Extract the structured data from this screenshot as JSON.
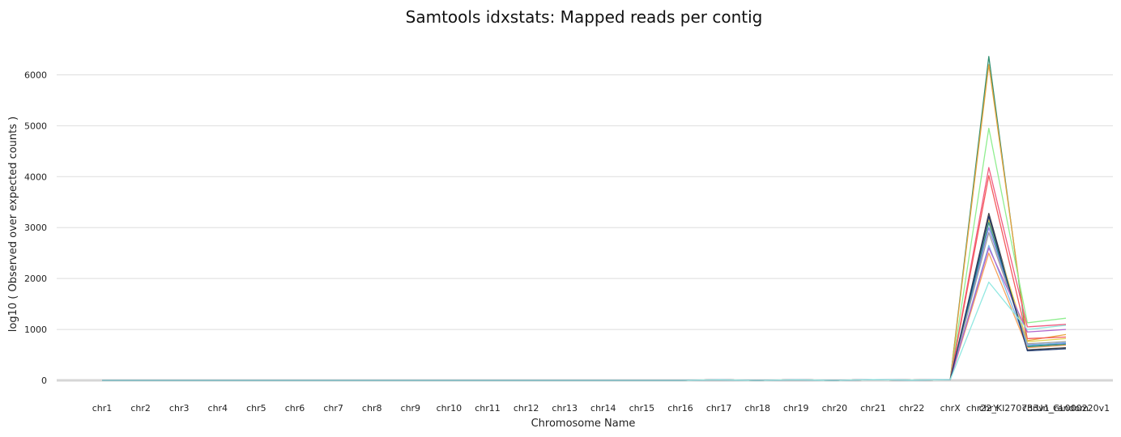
{
  "chart_data": {
    "type": "line",
    "title": "Samtools idxstats: Mapped reads per contig",
    "xlabel": "Chromosome Name",
    "ylabel": "log10 ( Observed over expected counts )",
    "ylim": [
      0,
      6500
    ],
    "yticks": [
      0,
      1000,
      2000,
      3000,
      4000,
      5000,
      6000
    ],
    "grid": true,
    "legend": "none",
    "categories": [
      "chr1",
      "chr2",
      "chr3",
      "chr4",
      "chr5",
      "chr6",
      "chr7",
      "chr8",
      "chr9",
      "chr10",
      "chr11",
      "chr12",
      "chr13",
      "chr14",
      "chr15",
      "chr16",
      "chr17",
      "chr18",
      "chr19",
      "chr20",
      "chr21",
      "chr22",
      "chrX",
      "chrY",
      "chr22_KI270733v1_random",
      "chrUn_GL000220v1"
    ],
    "tick_labels": [
      "chr1",
      "chr2",
      "chr3",
      "chr4",
      "chr5",
      "chr6",
      "chr7",
      "chr8",
      "chr9",
      "chr10",
      "chr11",
      "chr12",
      "chr13",
      "chr14",
      "chr15",
      "chr16",
      "chr17",
      "chr18",
      "chr19",
      "chr20",
      "chr21",
      "chr22",
      "chrX",
      "chrY",
      "chr22_KI270733v1_random",
      "chrUn_GL000220v1"
    ],
    "series": [
      {
        "color": "#2f8f6f",
        "values": [
          0,
          0,
          0,
          0,
          0,
          0,
          0,
          0,
          0,
          0,
          0,
          0,
          0,
          0,
          0,
          0,
          10,
          0,
          10,
          0,
          15,
          5,
          15,
          6360,
          680,
          720
        ]
      },
      {
        "color": "#e8a33c",
        "values": [
          0,
          0,
          0,
          0,
          0,
          0,
          0,
          0,
          0,
          0,
          0,
          0,
          0,
          0,
          0,
          0,
          10,
          0,
          10,
          0,
          15,
          5,
          15,
          6200,
          780,
          900
        ]
      },
      {
        "color": "#90ee90",
        "values": [
          0,
          0,
          0,
          0,
          0,
          0,
          0,
          0,
          0,
          0,
          0,
          0,
          0,
          0,
          0,
          0,
          10,
          0,
          10,
          0,
          15,
          5,
          15,
          4950,
          1130,
          1220
        ]
      },
      {
        "color": "#f15c80",
        "values": [
          0,
          0,
          0,
          0,
          0,
          0,
          0,
          0,
          0,
          0,
          0,
          0,
          0,
          0,
          0,
          0,
          10,
          0,
          10,
          0,
          15,
          5,
          15,
          4180,
          1050,
          1100
        ]
      },
      {
        "color": "#f45b5b",
        "values": [
          0,
          0,
          0,
          0,
          0,
          0,
          0,
          0,
          0,
          0,
          0,
          0,
          0,
          0,
          0,
          0,
          10,
          0,
          10,
          0,
          15,
          5,
          15,
          4020,
          820,
          850
        ]
      },
      {
        "color": "#434348",
        "values": [
          0,
          0,
          0,
          0,
          0,
          0,
          0,
          0,
          0,
          0,
          0,
          0,
          0,
          0,
          0,
          0,
          10,
          0,
          10,
          0,
          15,
          5,
          15,
          3280,
          600,
          640
        ]
      },
      {
        "color": "#e4d354",
        "values": [
          0,
          0,
          0,
          0,
          0,
          0,
          0,
          0,
          0,
          0,
          0,
          0,
          0,
          0,
          0,
          0,
          10,
          0,
          10,
          0,
          15,
          5,
          15,
          3150,
          760,
          820
        ]
      },
      {
        "color": "#8085e9",
        "values": [
          0,
          0,
          0,
          0,
          0,
          0,
          0,
          0,
          0,
          0,
          0,
          0,
          0,
          0,
          0,
          0,
          10,
          0,
          10,
          0,
          15,
          5,
          15,
          3000,
          700,
          730
        ]
      },
      {
        "color": "#2b908f",
        "values": [
          0,
          0,
          0,
          0,
          0,
          0,
          0,
          0,
          0,
          0,
          0,
          0,
          0,
          0,
          0,
          0,
          10,
          0,
          10,
          0,
          15,
          5,
          15,
          3100,
          660,
          700
        ]
      },
      {
        "color": "#a0a0a0",
        "values": [
          0,
          0,
          0,
          0,
          0,
          0,
          0,
          0,
          0,
          0,
          0,
          0,
          0,
          0,
          0,
          0,
          10,
          0,
          10,
          0,
          15,
          5,
          15,
          2900,
          720,
          760
        ]
      },
      {
        "color": "#7cb5ec",
        "values": [
          0,
          0,
          0,
          0,
          0,
          0,
          0,
          0,
          0,
          0,
          0,
          0,
          0,
          0,
          0,
          0,
          10,
          0,
          10,
          0,
          15,
          5,
          15,
          2650,
          690,
          740
        ]
      },
      {
        "color": "#f7a35c",
        "values": [
          0,
          0,
          0,
          0,
          0,
          0,
          0,
          0,
          0,
          0,
          0,
          0,
          0,
          0,
          0,
          0,
          10,
          0,
          10,
          0,
          15,
          5,
          15,
          2500,
          640,
          690
        ]
      },
      {
        "color": "#b266cc",
        "values": [
          0,
          0,
          0,
          0,
          0,
          0,
          0,
          0,
          0,
          0,
          0,
          0,
          0,
          0,
          0,
          0,
          10,
          0,
          10,
          0,
          15,
          5,
          15,
          2600,
          950,
          1000
        ]
      },
      {
        "color": "#1f3a70",
        "values": [
          0,
          0,
          0,
          0,
          0,
          0,
          0,
          0,
          0,
          0,
          0,
          0,
          0,
          0,
          0,
          0,
          10,
          0,
          10,
          0,
          15,
          5,
          15,
          3220,
          580,
          620
        ]
      },
      {
        "color": "#91e8e1",
        "values": [
          0,
          0,
          0,
          0,
          0,
          0,
          0,
          0,
          0,
          0,
          0,
          0,
          0,
          0,
          0,
          0,
          10,
          0,
          10,
          0,
          15,
          5,
          15,
          1930,
          1000,
          1080
        ]
      }
    ]
  }
}
